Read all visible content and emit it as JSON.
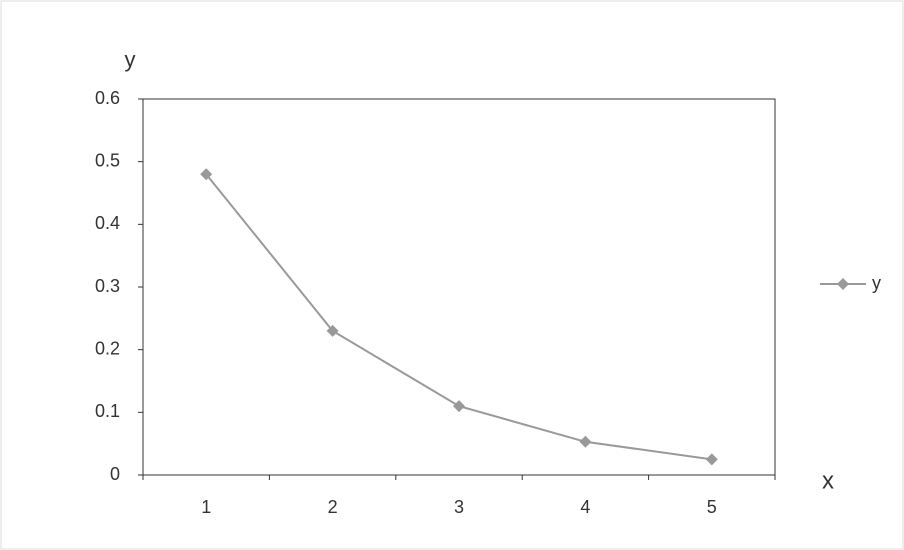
{
  "chart_data": {
    "type": "line",
    "x_label": "x",
    "y_label": "y",
    "categories": [
      "1",
      "2",
      "3",
      "4",
      "5"
    ],
    "series": [
      {
        "name": "y",
        "color": "#999999",
        "values": [
          0.48,
          0.23,
          0.11,
          0.053,
          0.025
        ]
      }
    ],
    "ylim": [
      0,
      0.6
    ],
    "yticks": [
      0,
      0.1,
      0.2,
      0.3,
      0.4,
      0.5,
      0.6
    ],
    "grid": false,
    "legend": "right"
  }
}
